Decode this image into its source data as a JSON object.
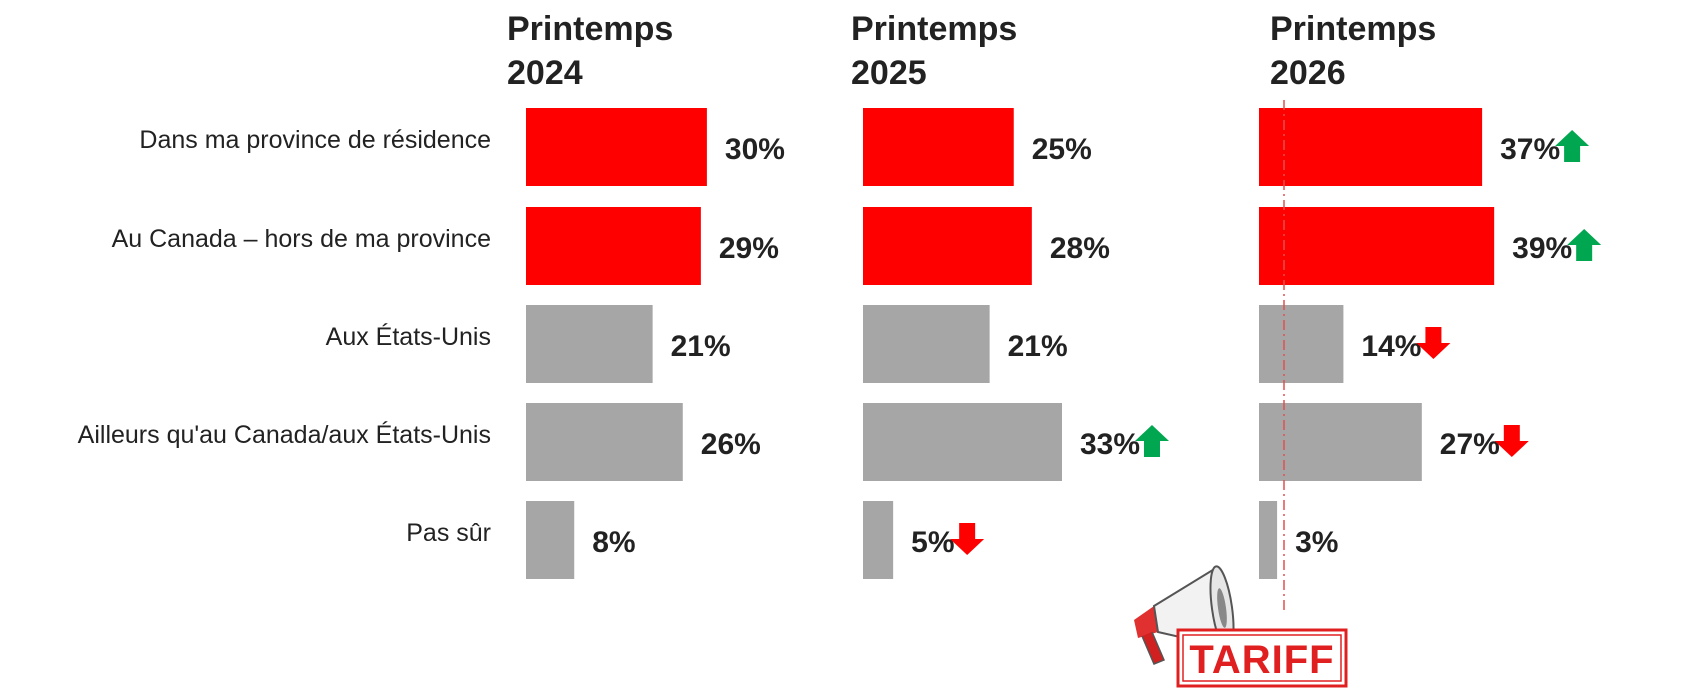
{
  "chart_data": {
    "type": "bar",
    "orientation": "horizontal",
    "categories": [
      "Dans ma province de résidence",
      "Au Canada – hors de ma province",
      "Aux États-Unis",
      "Ailleurs qu'au Canada/aux États-Unis",
      "Pas sûr"
    ],
    "series": [
      {
        "name": "Printemps 2024",
        "values": [
          30,
          29,
          21,
          26,
          8
        ],
        "labels": [
          "30%",
          "29%",
          "21%",
          "26%",
          "8%"
        ],
        "trends": [
          null,
          null,
          null,
          null,
          null
        ]
      },
      {
        "name": "Printemps 2025",
        "values": [
          25,
          28,
          21,
          33,
          5
        ],
        "labels": [
          "25%",
          "28%",
          "21%",
          "33%",
          "5%"
        ],
        "trends": [
          null,
          null,
          null,
          "up",
          "down"
        ]
      },
      {
        "name": "Printemps 2026",
        "values": [
          37,
          39,
          14,
          27,
          3
        ],
        "labels": [
          "37%",
          "39%",
          "14%",
          "27%",
          "3%"
        ],
        "trends": [
          "up",
          "up",
          "down",
          "down",
          null
        ]
      }
    ],
    "colors": {
      "highlight": "#ff0000",
      "neutral": "#a6a6a6",
      "up_arrow": "#00a650",
      "down_arrow": "#ff0000",
      "divider": "#e05050"
    },
    "highlighted_categories": [
      0,
      1
    ],
    "xlim": [
      0,
      40
    ],
    "grid": false,
    "legend": "none"
  },
  "badge": {
    "text": "TARIFF",
    "icon": "megaphone-icon"
  }
}
